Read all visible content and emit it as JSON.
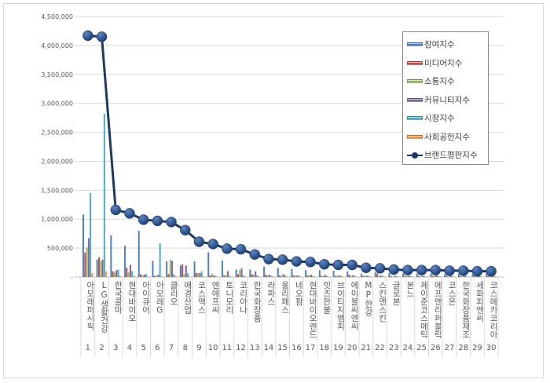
{
  "chart_data": {
    "type": "bar+line",
    "title": "",
    "xlabel": "",
    "ylabel": "",
    "ylim": [
      0,
      4500000
    ],
    "yticks": [
      0,
      500000,
      1000000,
      1500000,
      2000000,
      2500000,
      3000000,
      3500000,
      4000000,
      4500000
    ],
    "ytick_labels": [
      "-",
      "500,000",
      "1,000,000",
      "1,500,000",
      "2,000,000",
      "2,500,000",
      "3,000,000",
      "3,500,000",
      "4,000,000",
      "4,500,000"
    ],
    "grid": true,
    "legend_position": "top-right",
    "categories": [
      "아모레퍼시픽",
      "LG생활건강",
      "한국콜마",
      "현대바이오",
      "아이큐어",
      "아모레G",
      "클리오",
      "애경산업",
      "코스맥스",
      "엔에프씨",
      "토니모리",
      "코리아나",
      "한국화장품",
      "라파스",
      "올리패스",
      "네오팜",
      "현대바이오랜드",
      "잇츠한불",
      "브이티지엠피",
      "에이블씨엔씨",
      "MP한강",
      "스킨앤스킨",
      "글로본",
      "본느",
      "제이준코스메틱",
      "에프앤리퍼블릭",
      "코스온",
      "한국화장품제조",
      "세화피앤씨",
      "코스메카코리아"
    ],
    "category_numbers": [
      "1",
      "2",
      "3",
      "4",
      "5",
      "6",
      "7",
      "8",
      "9",
      "10",
      "11",
      "12",
      "13",
      "14",
      "15",
      "16",
      "17",
      "18",
      "19",
      "20",
      "21",
      "22",
      "23",
      "24",
      "25",
      "26",
      "27",
      "28",
      "29",
      "30"
    ],
    "series": [
      {
        "name": "참여지수",
        "type": "bar",
        "color": "#4f81bd",
        "values": [
          1080000,
          300000,
          720000,
          540000,
          800000,
          280000,
          270000,
          200000,
          270000,
          430000,
          280000,
          130000,
          130000,
          180000,
          160000,
          140000,
          120000,
          120000,
          110000,
          100000,
          60000,
          80000,
          70000,
          60000,
          60000,
          60000,
          50000,
          60000,
          50000,
          60000
        ]
      },
      {
        "name": "미디어지수",
        "type": "bar",
        "color": "#c0504d",
        "values": [
          420000,
          340000,
          100000,
          160000,
          50000,
          20000,
          50000,
          220000,
          70000,
          30000,
          30000,
          50000,
          50000,
          40000,
          30000,
          30000,
          30000,
          20000,
          20000,
          40000,
          20000,
          60000,
          20000,
          20000,
          20000,
          20000,
          20000,
          20000,
          20000,
          20000
        ]
      },
      {
        "name": "소통지수",
        "type": "bar",
        "color": "#9bbb59",
        "values": [
          510000,
          280000,
          80000,
          80000,
          30000,
          20000,
          300000,
          50000,
          70000,
          60000,
          30000,
          120000,
          40000,
          30000,
          20000,
          20000,
          30000,
          20000,
          20000,
          20000,
          30000,
          20000,
          10000,
          20000,
          10000,
          20000,
          10000,
          10000,
          10000,
          10000
        ]
      },
      {
        "name": "커뮤니티지수",
        "type": "bar",
        "color": "#8064a2",
        "values": [
          670000,
          300000,
          120000,
          210000,
          40000,
          40000,
          280000,
          200000,
          70000,
          30000,
          100000,
          150000,
          100000,
          40000,
          50000,
          30000,
          40000,
          40000,
          30000,
          30000,
          20000,
          30000,
          20000,
          20000,
          20000,
          30000,
          30000,
          20000,
          20000,
          20000
        ]
      },
      {
        "name": "시장지수",
        "type": "bar",
        "color": "#4bacc6",
        "values": [
          1450000,
          2820000,
          130000,
          100000,
          50000,
          580000,
          50000,
          70000,
          100000,
          20000,
          20000,
          30000,
          30000,
          20000,
          30000,
          20000,
          20000,
          20000,
          20000,
          20000,
          20000,
          20000,
          20000,
          20000,
          20000,
          20000,
          20000,
          20000,
          20000,
          20000
        ]
      },
      {
        "name": "사회공헌지수",
        "type": "bar",
        "color": "#f79646",
        "values": [
          70000,
          100000,
          20000,
          20000,
          10000,
          10000,
          20000,
          10000,
          10000,
          10000,
          10000,
          10000,
          10000,
          10000,
          10000,
          10000,
          10000,
          10000,
          10000,
          10000,
          10000,
          10000,
          10000,
          10000,
          10000,
          10000,
          10000,
          10000,
          10000,
          10000
        ]
      },
      {
        "name": "브랜드평판지수",
        "type": "line",
        "color": "#1f3864",
        "values": [
          4170000,
          4150000,
          1160000,
          1100000,
          990000,
          970000,
          950000,
          810000,
          610000,
          570000,
          490000,
          480000,
          390000,
          310000,
          300000,
          270000,
          260000,
          220000,
          210000,
          210000,
          160000,
          150000,
          130000,
          120000,
          120000,
          120000,
          110000,
          110000,
          100000,
          100000
        ]
      }
    ]
  }
}
